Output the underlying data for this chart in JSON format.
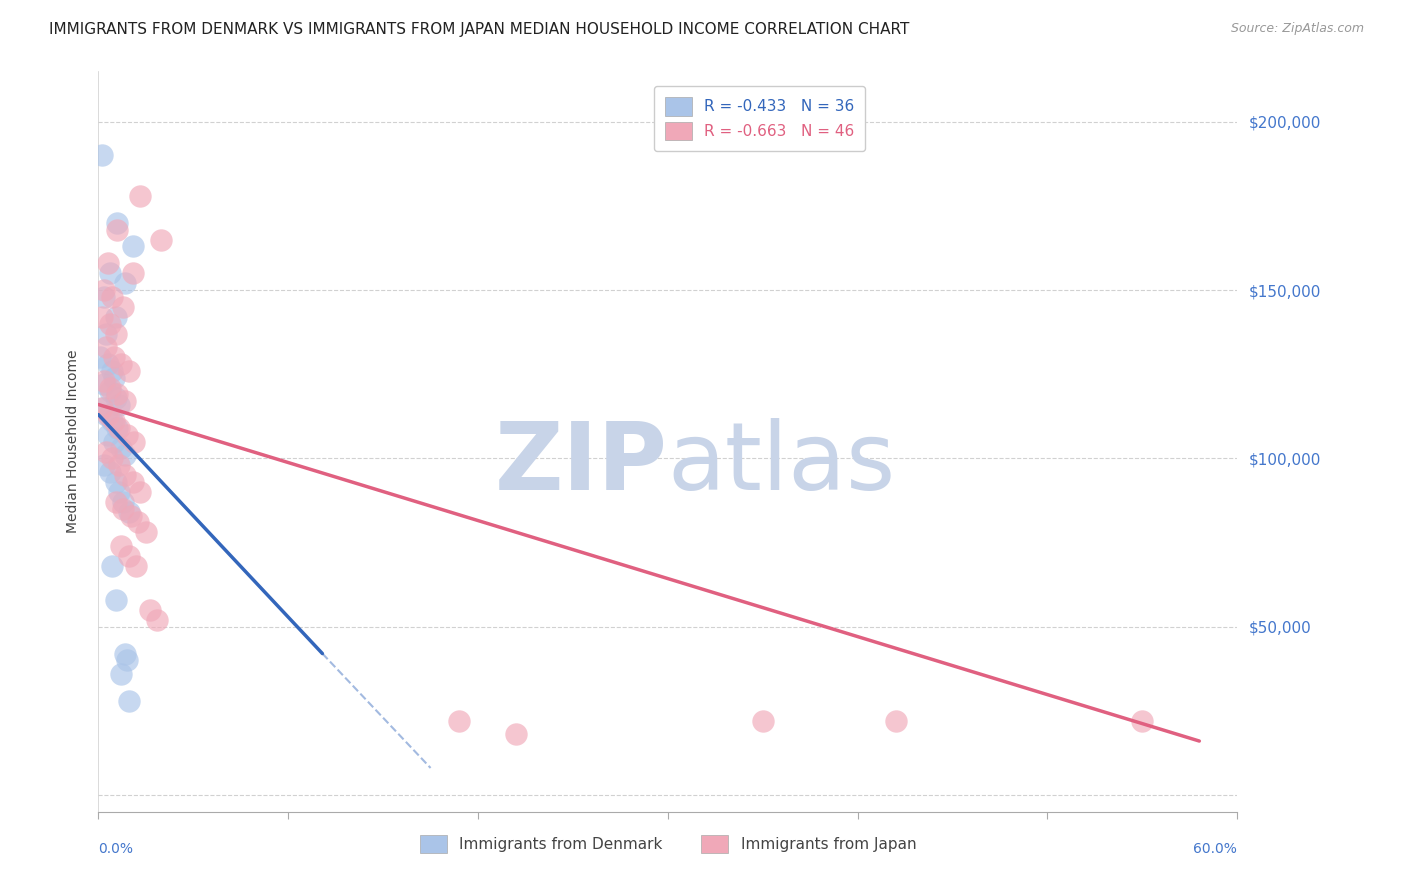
{
  "title": "IMMIGRANTS FROM DENMARK VS IMMIGRANTS FROM JAPAN MEDIAN HOUSEHOLD INCOME CORRELATION CHART",
  "source_text": "Source: ZipAtlas.com",
  "ylabel": "Median Household Income",
  "xlim": [
    0.0,
    0.6
  ],
  "ylim": [
    -5000,
    215000
  ],
  "yticks": [
    0,
    50000,
    100000,
    150000,
    200000
  ],
  "right_ytick_labels": [
    "",
    "$50,000",
    "$100,000",
    "$150,000",
    "$200,000"
  ],
  "denmark_scatter": [
    [
      0.002,
      190000
    ],
    [
      0.01,
      170000
    ],
    [
      0.018,
      163000
    ],
    [
      0.006,
      155000
    ],
    [
      0.014,
      152000
    ],
    [
      0.003,
      148000
    ],
    [
      0.009,
      142000
    ],
    [
      0.004,
      137000
    ],
    [
      0.001,
      130000
    ],
    [
      0.005,
      128000
    ],
    [
      0.007,
      126000
    ],
    [
      0.008,
      124000
    ],
    [
      0.003,
      122000
    ],
    [
      0.006,
      120000
    ],
    [
      0.009,
      118000
    ],
    [
      0.011,
      116000
    ],
    [
      0.002,
      115000
    ],
    [
      0.004,
      113000
    ],
    [
      0.007,
      111000
    ],
    [
      0.01,
      109000
    ],
    [
      0.005,
      107000
    ],
    [
      0.008,
      105000
    ],
    [
      0.012,
      103000
    ],
    [
      0.014,
      101000
    ],
    [
      0.003,
      98000
    ],
    [
      0.006,
      96000
    ],
    [
      0.009,
      93000
    ],
    [
      0.011,
      90000
    ],
    [
      0.013,
      87000
    ],
    [
      0.016,
      84000
    ],
    [
      0.007,
      68000
    ],
    [
      0.009,
      58000
    ],
    [
      0.014,
      42000
    ],
    [
      0.015,
      40000
    ],
    [
      0.012,
      36000
    ],
    [
      0.016,
      28000
    ]
  ],
  "japan_scatter": [
    [
      0.022,
      178000
    ],
    [
      0.01,
      168000
    ],
    [
      0.033,
      165000
    ],
    [
      0.005,
      158000
    ],
    [
      0.018,
      155000
    ],
    [
      0.003,
      150000
    ],
    [
      0.007,
      148000
    ],
    [
      0.013,
      145000
    ],
    [
      0.002,
      142000
    ],
    [
      0.006,
      140000
    ],
    [
      0.009,
      137000
    ],
    [
      0.004,
      133000
    ],
    [
      0.008,
      130000
    ],
    [
      0.012,
      128000
    ],
    [
      0.016,
      126000
    ],
    [
      0.003,
      123000
    ],
    [
      0.006,
      121000
    ],
    [
      0.01,
      119000
    ],
    [
      0.014,
      117000
    ],
    [
      0.002,
      115000
    ],
    [
      0.005,
      113000
    ],
    [
      0.008,
      111000
    ],
    [
      0.011,
      109000
    ],
    [
      0.015,
      107000
    ],
    [
      0.019,
      105000
    ],
    [
      0.004,
      102000
    ],
    [
      0.007,
      100000
    ],
    [
      0.011,
      98000
    ],
    [
      0.014,
      95000
    ],
    [
      0.018,
      93000
    ],
    [
      0.022,
      90000
    ],
    [
      0.009,
      87000
    ],
    [
      0.013,
      85000
    ],
    [
      0.017,
      83000
    ],
    [
      0.021,
      81000
    ],
    [
      0.025,
      78000
    ],
    [
      0.012,
      74000
    ],
    [
      0.016,
      71000
    ],
    [
      0.02,
      68000
    ],
    [
      0.027,
      55000
    ],
    [
      0.031,
      52000
    ],
    [
      0.19,
      22000
    ],
    [
      0.22,
      18000
    ],
    [
      0.35,
      22000
    ],
    [
      0.42,
      22000
    ],
    [
      0.55,
      22000
    ]
  ],
  "denmark_line_solid": [
    [
      0.0,
      113000
    ],
    [
      0.118,
      42000
    ]
  ],
  "denmark_line_dashed": [
    [
      0.118,
      42000
    ],
    [
      0.175,
      8000
    ]
  ],
  "japan_line": [
    [
      0.0,
      116000
    ],
    [
      0.58,
      16000
    ]
  ],
  "denmark_color": "#3366bb",
  "japan_color": "#e06080",
  "denmark_scatter_color": "#aac4e8",
  "japan_scatter_color": "#f0a8b8",
  "watermark_zip": "ZIP",
  "watermark_atlas": "atlas",
  "watermark_color": "#c8d4e8",
  "background_color": "#ffffff",
  "title_fontsize": 11,
  "legend_r_entries": [
    {
      "label": "R = -0.433   N = 36",
      "color": "#3366bb"
    },
    {
      "label": "R = -0.663   N = 46",
      "color": "#e06080"
    }
  ],
  "legend_bottom_entries": [
    {
      "label": "Immigrants from Denmark",
      "color": "#aac4e8"
    },
    {
      "label": "Immigrants from Japan",
      "color": "#f0a8b8"
    }
  ]
}
